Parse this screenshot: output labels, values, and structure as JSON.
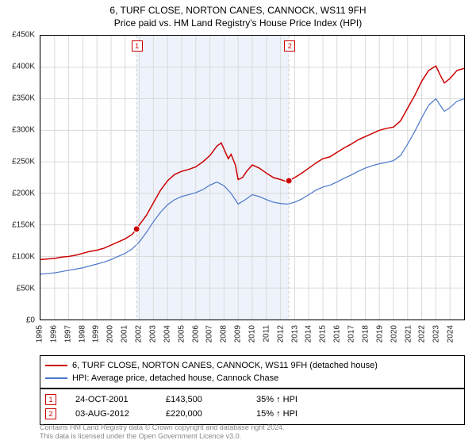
{
  "title_line1": "6, TURF CLOSE, NORTON CANES, CANNOCK, WS11 9FH",
  "title_line2": "Price paid vs. HM Land Registry's House Price Index (HPI)",
  "chart": {
    "type": "line",
    "background_color": "#ffffff",
    "grid_color": "#d9d9d9",
    "border_color": "#000000",
    "shade_color": "#eef2fb",
    "ylim": [
      0,
      450000
    ],
    "ytick_step": 50000,
    "y_prefix": "£",
    "y_suffix": "K",
    "y_labels": [
      "£0",
      "£50K",
      "£100K",
      "£150K",
      "£200K",
      "£250K",
      "£300K",
      "£350K",
      "£400K",
      "£450K"
    ],
    "x_years": [
      1995,
      1996,
      1997,
      1998,
      1999,
      2000,
      2001,
      2002,
      2003,
      2004,
      2005,
      2006,
      2007,
      2008,
      2009,
      2010,
      2011,
      2012,
      2013,
      2014,
      2015,
      2016,
      2017,
      2018,
      2019,
      2020,
      2021,
      2022,
      2023,
      2024
    ],
    "x_domain": [
      1995,
      2025
    ],
    "series": [
      {
        "name": "property",
        "label": "6, TURF CLOSE, NORTON CANES, CANNOCK, WS11 9FH (detached house)",
        "color": "#cc0000",
        "line_width": 1.5,
        "points": [
          [
            1995.0,
            95
          ],
          [
            1995.5,
            96
          ],
          [
            1996.0,
            97
          ],
          [
            1996.5,
            99
          ],
          [
            1997.0,
            100
          ],
          [
            1997.5,
            102
          ],
          [
            1998.0,
            105
          ],
          [
            1998.5,
            108
          ],
          [
            1999.0,
            110
          ],
          [
            1999.5,
            113
          ],
          [
            2000.0,
            118
          ],
          [
            2000.5,
            123
          ],
          [
            2001.0,
            128
          ],
          [
            2001.5,
            135
          ],
          [
            2001.81,
            143.5
          ],
          [
            2002.0,
            150
          ],
          [
            2002.5,
            165
          ],
          [
            2003.0,
            185
          ],
          [
            2003.5,
            205
          ],
          [
            2004.0,
            220
          ],
          [
            2004.5,
            230
          ],
          [
            2005.0,
            235
          ],
          [
            2005.5,
            238
          ],
          [
            2006.0,
            242
          ],
          [
            2006.5,
            250
          ],
          [
            2007.0,
            260
          ],
          [
            2007.5,
            275
          ],
          [
            2007.8,
            280
          ],
          [
            2008.0,
            270
          ],
          [
            2008.3,
            255
          ],
          [
            2008.5,
            262
          ],
          [
            2008.8,
            245
          ],
          [
            2009.0,
            222
          ],
          [
            2009.3,
            225
          ],
          [
            2009.6,
            235
          ],
          [
            2010.0,
            245
          ],
          [
            2010.5,
            240
          ],
          [
            2011.0,
            232
          ],
          [
            2011.5,
            225
          ],
          [
            2012.0,
            222
          ],
          [
            2012.5,
            218
          ],
          [
            2012.59,
            220
          ],
          [
            2013.0,
            225
          ],
          [
            2013.5,
            232
          ],
          [
            2014.0,
            240
          ],
          [
            2014.5,
            248
          ],
          [
            2015.0,
            255
          ],
          [
            2015.5,
            258
          ],
          [
            2016.0,
            265
          ],
          [
            2016.5,
            272
          ],
          [
            2017.0,
            278
          ],
          [
            2017.5,
            285
          ],
          [
            2018.0,
            290
          ],
          [
            2018.5,
            295
          ],
          [
            2019.0,
            300
          ],
          [
            2019.5,
            303
          ],
          [
            2020.0,
            305
          ],
          [
            2020.5,
            315
          ],
          [
            2021.0,
            335
          ],
          [
            2021.5,
            355
          ],
          [
            2022.0,
            378
          ],
          [
            2022.5,
            395
          ],
          [
            2023.0,
            402
          ],
          [
            2023.3,
            388
          ],
          [
            2023.6,
            375
          ],
          [
            2024.0,
            382
          ],
          [
            2024.5,
            395
          ],
          [
            2025.0,
            398
          ]
        ]
      },
      {
        "name": "hpi",
        "label": "HPI: Average price, detached house, Cannock Chase",
        "color": "#4a77c9",
        "line_width": 1.2,
        "points": [
          [
            1995.0,
            72
          ],
          [
            1995.5,
            73
          ],
          [
            1996.0,
            74
          ],
          [
            1996.5,
            76
          ],
          [
            1997.0,
            78
          ],
          [
            1997.5,
            80
          ],
          [
            1998.0,
            82
          ],
          [
            1998.5,
            85
          ],
          [
            1999.0,
            88
          ],
          [
            1999.5,
            91
          ],
          [
            2000.0,
            95
          ],
          [
            2000.5,
            100
          ],
          [
            2001.0,
            105
          ],
          [
            2001.5,
            112
          ],
          [
            2002.0,
            123
          ],
          [
            2002.5,
            138
          ],
          [
            2003.0,
            155
          ],
          [
            2003.5,
            170
          ],
          [
            2004.0,
            182
          ],
          [
            2004.5,
            190
          ],
          [
            2005.0,
            195
          ],
          [
            2005.5,
            198
          ],
          [
            2006.0,
            201
          ],
          [
            2006.5,
            206
          ],
          [
            2007.0,
            213
          ],
          [
            2007.5,
            218
          ],
          [
            2008.0,
            212
          ],
          [
            2008.5,
            200
          ],
          [
            2009.0,
            183
          ],
          [
            2009.5,
            190
          ],
          [
            2010.0,
            198
          ],
          [
            2010.5,
            195
          ],
          [
            2011.0,
            190
          ],
          [
            2011.5,
            186
          ],
          [
            2012.0,
            184
          ],
          [
            2012.5,
            183
          ],
          [
            2013.0,
            186
          ],
          [
            2013.5,
            191
          ],
          [
            2014.0,
            198
          ],
          [
            2014.5,
            205
          ],
          [
            2015.0,
            210
          ],
          [
            2015.5,
            213
          ],
          [
            2016.0,
            218
          ],
          [
            2016.5,
            224
          ],
          [
            2017.0,
            229
          ],
          [
            2017.5,
            235
          ],
          [
            2018.0,
            240
          ],
          [
            2018.5,
            244
          ],
          [
            2019.0,
            247
          ],
          [
            2019.5,
            249
          ],
          [
            2020.0,
            252
          ],
          [
            2020.5,
            260
          ],
          [
            2021.0,
            278
          ],
          [
            2021.5,
            298
          ],
          [
            2022.0,
            320
          ],
          [
            2022.5,
            340
          ],
          [
            2023.0,
            350
          ],
          [
            2023.3,
            340
          ],
          [
            2023.6,
            330
          ],
          [
            2024.0,
            336
          ],
          [
            2024.5,
            346
          ],
          [
            2025.0,
            350
          ]
        ]
      }
    ],
    "markers": [
      {
        "id": "1",
        "x": 2001.81,
        "y": 143.5,
        "badge_color": "#cc0000",
        "dot_color": "#cc0000"
      },
      {
        "id": "2",
        "x": 2012.59,
        "y": 220.0,
        "badge_color": "#cc0000",
        "dot_color": "#cc0000"
      }
    ],
    "shaded_ranges": [
      {
        "from": 2001.81,
        "to": 2012.59
      }
    ]
  },
  "legend": {
    "items": [
      {
        "color": "#cc0000",
        "label": "6, TURF CLOSE, NORTON CANES, CANNOCK, WS11 9FH (detached house)"
      },
      {
        "color": "#4a77c9",
        "label": "HPI: Average price, detached house, Cannock Chase"
      }
    ]
  },
  "marker_table": {
    "rows": [
      {
        "id": "1",
        "date": "24-OCT-2001",
        "price": "£143,500",
        "hpi_diff": "35% ↑ HPI"
      },
      {
        "id": "2",
        "date": "03-AUG-2012",
        "price": "£220,000",
        "hpi_diff": "15% ↑ HPI"
      }
    ],
    "badge_color": "#cc0000"
  },
  "footer": {
    "line1": "Contains HM Land Registry data © Crown copyright and database right 2024.",
    "line2": "This data is licensed under the Open Government Licence v3.0."
  }
}
